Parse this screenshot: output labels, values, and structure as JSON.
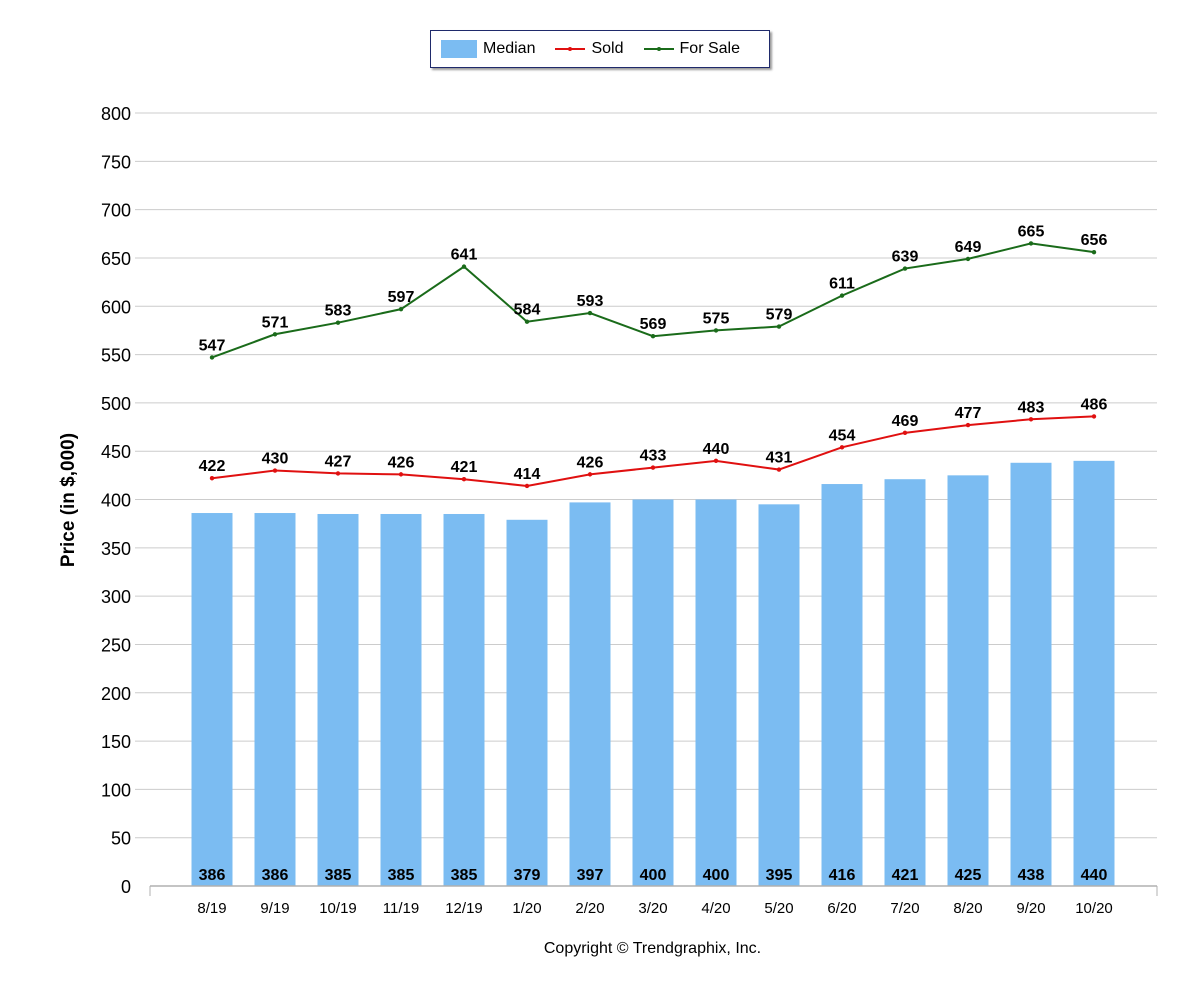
{
  "legend": {
    "median_label": "Median",
    "sold_label": "Sold",
    "forsale_label": "For Sale"
  },
  "colors": {
    "median": "#7bbcf2",
    "sold": "#e01010",
    "forsale": "#1a6b1a",
    "grid": "#cccccc"
  },
  "copyright": "Copyright © Trendgraphix, Inc.",
  "chart_data": {
    "type": "bar",
    "ylabel": "Price (in $,000)",
    "xlabel": "",
    "ylim": [
      0,
      800
    ],
    "yticks": [
      0,
      50,
      100,
      150,
      200,
      250,
      300,
      350,
      400,
      450,
      500,
      550,
      600,
      650,
      700,
      750,
      800
    ],
    "grid": true,
    "legend_position": "top-center",
    "categories": [
      "8/19",
      "9/19",
      "10/19",
      "11/19",
      "12/19",
      "1/20",
      "2/20",
      "3/20",
      "4/20",
      "5/20",
      "6/20",
      "7/20",
      "8/20",
      "9/20",
      "10/20"
    ],
    "series": [
      {
        "name": "Median",
        "type": "bar",
        "values": [
          386,
          386,
          385,
          385,
          385,
          379,
          397,
          400,
          400,
          395,
          416,
          421,
          425,
          438,
          440
        ]
      },
      {
        "name": "Sold",
        "type": "line",
        "values": [
          422,
          430,
          427,
          426,
          421,
          414,
          426,
          433,
          440,
          431,
          454,
          469,
          477,
          483,
          486
        ]
      },
      {
        "name": "For Sale",
        "type": "line",
        "values": [
          547,
          571,
          583,
          597,
          641,
          584,
          593,
          569,
          575,
          579,
          611,
          639,
          649,
          665,
          656
        ]
      }
    ]
  }
}
